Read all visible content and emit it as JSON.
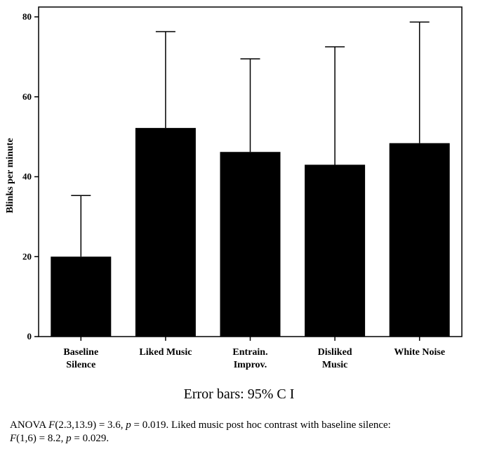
{
  "chart_data": {
    "type": "bar",
    "categories": [
      [
        "Baseline",
        "Silence"
      ],
      [
        "Liked Music"
      ],
      [
        "Entrain.",
        "Improv."
      ],
      [
        "Disliked",
        "Music"
      ],
      [
        "White Noise"
      ]
    ],
    "values": [
      20,
      52.2,
      46.2,
      43,
      48.4
    ],
    "error_upper": [
      35.3,
      76.3,
      69.5,
      72.5,
      78.7
    ],
    "ylabel": "Blinks per minute",
    "ylim": [
      0,
      80
    ],
    "yticks": [
      0,
      20,
      40,
      60,
      80
    ],
    "bar_color": "#000000",
    "grid": false
  },
  "caption": "Error bars: 95% C I",
  "note": {
    "line1": [
      {
        "text": "ANOVA ",
        "italic": false
      },
      {
        "text": "F",
        "italic": true
      },
      {
        "text": "(2.3,13.9) = 3.6, ",
        "italic": false
      },
      {
        "text": "p",
        "italic": true
      },
      {
        "text": " = 0.019. Liked music post hoc contrast with baseline silence:",
        "italic": false
      }
    ],
    "line2": [
      {
        "text": "F",
        "italic": true
      },
      {
        "text": "(1,6) = 8.2, ",
        "italic": false
      },
      {
        "text": "p",
        "italic": true
      },
      {
        "text": " = 0.029.",
        "italic": false
      }
    ]
  }
}
